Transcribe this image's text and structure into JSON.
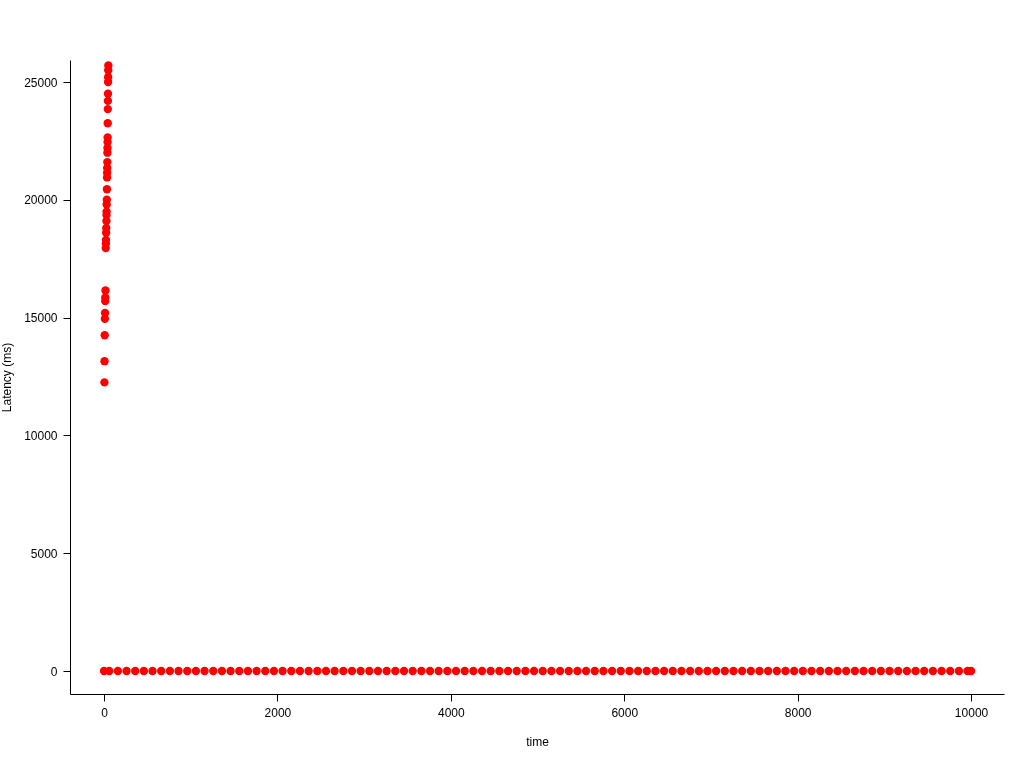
{
  "chart_data": {
    "type": "scatter",
    "xlabel": "time",
    "ylabel": "Latency (ms)",
    "xlim": [
      -392,
      10380
    ],
    "ylim": [
      -976,
      25934
    ],
    "xticks": [
      0,
      2000,
      4000,
      6000,
      8000,
      10000
    ],
    "yticks": [
      0,
      5000,
      10000,
      15000,
      20000,
      25000
    ],
    "grid": false,
    "marker": "circle",
    "series": [
      {
        "color": "#ff0000",
        "x": [
          0,
          5,
          6,
          8,
          10,
          12,
          14,
          15,
          17,
          20,
          22,
          23,
          25,
          26,
          28,
          29,
          30,
          31,
          33,
          34,
          35,
          36,
          37,
          38,
          39,
          40,
          41,
          42,
          43,
          44,
          45,
          46,
          47,
          48,
          49,
          50,
          60,
          160,
          260,
          360,
          460,
          560,
          660,
          760,
          860,
          960,
          1060,
          1160,
          1260,
          1360,
          1460,
          1560,
          1660,
          1760,
          1860,
          1960,
          2060,
          2160,
          2260,
          2360,
          2460,
          2560,
          2660,
          2760,
          2860,
          2960,
          3060,
          3160,
          3260,
          3360,
          3460,
          3560,
          3660,
          3760,
          3860,
          3960,
          4060,
          4160,
          4260,
          4360,
          4460,
          4560,
          4660,
          4760,
          4860,
          4960,
          5060,
          5160,
          5260,
          5360,
          5460,
          5560,
          5660,
          5760,
          5860,
          5960,
          6060,
          6160,
          6260,
          6360,
          6460,
          6560,
          6660,
          6760,
          6860,
          6960,
          7060,
          7160,
          7260,
          7360,
          7460,
          7560,
          7660,
          7760,
          7860,
          7960,
          8060,
          8160,
          8260,
          8360,
          8460,
          8560,
          8660,
          8760,
          8860,
          8960,
          9060,
          9160,
          9260,
          9360,
          9460,
          9560,
          9660,
          9760,
          9860,
          9960,
          10000
        ],
        "values": [
          0,
          12250,
          13150,
          14250,
          14950,
          15200,
          15700,
          15850,
          16150,
          17950,
          18150,
          18300,
          18600,
          18800,
          19100,
          19350,
          19500,
          19800,
          20000,
          20450,
          20950,
          21150,
          21350,
          21600,
          22000,
          22200,
          22450,
          22650,
          23250,
          23850,
          24200,
          24500,
          25000,
          25200,
          25500,
          25700,
          0,
          0,
          0,
          0,
          0,
          0,
          0,
          0,
          0,
          0,
          0,
          0,
          0,
          0,
          0,
          0,
          0,
          0,
          0,
          0,
          0,
          0,
          0,
          0,
          0,
          0,
          0,
          0,
          0,
          0,
          0,
          0,
          0,
          0,
          0,
          0,
          0,
          0,
          0,
          0,
          0,
          0,
          0,
          0,
          0,
          0,
          0,
          0,
          0,
          0,
          0,
          0,
          0,
          0,
          0,
          0,
          0,
          0,
          0,
          0,
          0,
          0,
          0,
          0,
          0,
          0,
          0,
          0,
          0,
          0,
          0,
          0,
          0,
          0,
          0,
          0,
          0,
          0,
          0,
          0,
          0,
          0,
          0,
          0,
          0,
          0,
          0,
          0,
          0,
          0,
          0,
          0,
          0,
          0,
          0,
          0,
          0,
          0,
          0,
          0,
          0
        ]
      }
    ]
  }
}
